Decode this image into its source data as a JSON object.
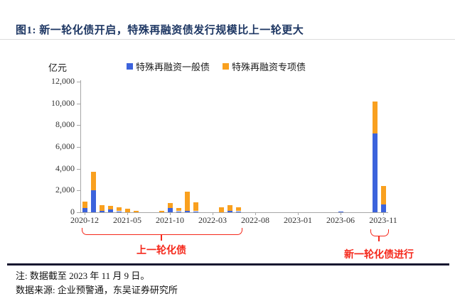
{
  "title": "图1:  新一轮化债开启，特殊再融资债发行规模比上一轮更大",
  "y_axis_unit": "亿元",
  "legend": {
    "items": [
      {
        "label": "特殊再融资一般债",
        "color": "#3C63DC"
      },
      {
        "label": "特殊再融资专项债",
        "color": "#F9A01F"
      }
    ]
  },
  "annotations": {
    "round1": {
      "label": "上一轮化债",
      "from": "2020-12",
      "to": "2022-06"
    },
    "round2": {
      "label": "新一轮化债进行",
      "from": "2023-10",
      "to": "2023-11"
    }
  },
  "notes": {
    "line1": "注: 数据截至 2023 年 11 月 9 日。",
    "line2": "数据来源: 企业预警通，东吴证券研究所"
  },
  "colors": {
    "title_navy": "#1F3864",
    "annotation_red": "#F5281B",
    "axis_gray": "#A6A6A6",
    "general_bond_blue": "#3C63DC",
    "special_bond_orange": "#F9A01F"
  },
  "chart_data": {
    "type": "bar",
    "stacked": true,
    "title": "",
    "xlabel": "",
    "ylabel": "亿元",
    "ylim": [
      0,
      12000
    ],
    "y_ticks": [
      0,
      2000,
      4000,
      6000,
      8000,
      10000,
      12000
    ],
    "grid": false,
    "legend_position": "top",
    "x": [
      "2020-12",
      "2021-01",
      "2021-02",
      "2021-03",
      "2021-04",
      "2021-05",
      "2021-06",
      "2021-07",
      "2021-08",
      "2021-09",
      "2021-10",
      "2021-11",
      "2021-12",
      "2022-01",
      "2022-02",
      "2022-03",
      "2022-04",
      "2022-05",
      "2022-06",
      "2022-07",
      "2022-08",
      "2022-09",
      "2022-10",
      "2022-11",
      "2022-12",
      "2023-01",
      "2023-02",
      "2023-03",
      "2023-04",
      "2023-05",
      "2023-06",
      "2023-07",
      "2023-08",
      "2023-09",
      "2023-10",
      "2023-11"
    ],
    "x_tick_labels": [
      "2020-12",
      "2021-05",
      "2021-10",
      "2022-03",
      "2022-08",
      "2023-01",
      "2023-06",
      "2023-11"
    ],
    "series": [
      {
        "name": "特殊再融资一般债",
        "color": "#3C63DC",
        "values": [
          400,
          2050,
          150,
          250,
          60,
          0,
          0,
          0,
          0,
          0,
          400,
          60,
          130,
          60,
          0,
          0,
          0,
          150,
          60,
          0,
          0,
          0,
          0,
          0,
          0,
          0,
          0,
          0,
          0,
          0,
          90,
          0,
          0,
          0,
          7250,
          700
        ]
      },
      {
        "name": "特殊再融资专项债",
        "color": "#F9A01F",
        "values": [
          600,
          1650,
          500,
          340,
          390,
          330,
          130,
          0,
          0,
          130,
          450,
          270,
          1770,
          840,
          0,
          0,
          450,
          500,
          390,
          0,
          0,
          0,
          0,
          0,
          0,
          0,
          0,
          0,
          0,
          0,
          0,
          0,
          0,
          0,
          2950,
          1700
        ]
      }
    ]
  }
}
